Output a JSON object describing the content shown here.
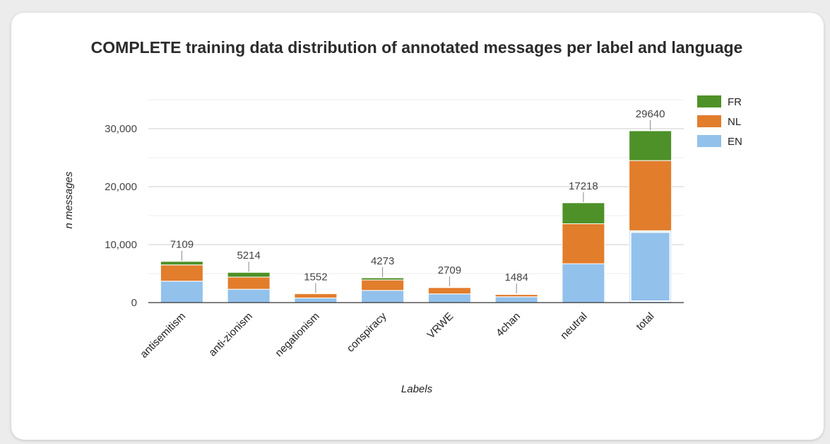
{
  "chart_data": {
    "type": "bar",
    "stacked": true,
    "title": "COMPLETE training data distribution of annotated messages per label and language",
    "xlabel": "Labels",
    "ylabel": "n messages",
    "ylim": [
      0,
      35000
    ],
    "yticks": [
      0,
      10000,
      20000,
      30000
    ],
    "ytick_labels": [
      "0",
      "10,000",
      "20,000",
      "30,000"
    ],
    "grid": true,
    "legend_position": "top-right",
    "categories": [
      "antisemitism",
      "anti-zionism",
      "negationism",
      "conspiracy",
      "VRWE",
      "4chan",
      "neutral",
      "total"
    ],
    "series": [
      {
        "name": "EN",
        "color": "#92c1ec",
        "values": [
          3700,
          2300,
          800,
          2100,
          1500,
          1000,
          6700,
          12400
        ]
      },
      {
        "name": "NL",
        "color": "#e27d2c",
        "values": [
          2800,
          2100,
          750,
          1800,
          1100,
          400,
          6900,
          12100
        ]
      },
      {
        "name": "FR",
        "color": "#4e9128",
        "values": [
          609,
          814,
          2,
          373,
          109,
          84,
          3618,
          5140
        ]
      }
    ],
    "legend_order": [
      "FR",
      "NL",
      "EN"
    ],
    "totals": [
      7109,
      5214,
      1552,
      4273,
      2709,
      1484,
      17218,
      29640
    ],
    "total_labels": [
      "7109",
      "5214",
      "1552",
      "4273",
      "2709",
      "1484",
      "17218",
      "29640"
    ]
  }
}
